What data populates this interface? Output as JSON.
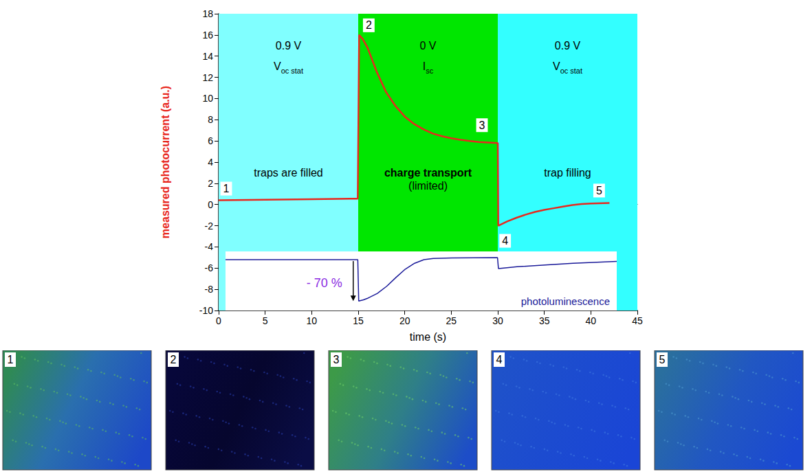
{
  "chart_data": [
    {
      "type": "line",
      "x_label": "time (s)",
      "y_label": "measured photocurrent (a.u.)",
      "xlim": [
        0,
        45
      ],
      "xticks": [
        0,
        5,
        10,
        15,
        20,
        25,
        30,
        35,
        40,
        45
      ],
      "ylim": [
        -10,
        18
      ],
      "yticks": [
        -10,
        -8,
        -6,
        -4,
        -2,
        0,
        2,
        4,
        6,
        8,
        10,
        12,
        14,
        16,
        18
      ],
      "grid": false,
      "color": "#e8281e",
      "x": [
        0,
        5,
        10,
        14.95,
        15.1,
        15.5,
        16,
        17,
        18,
        19,
        20,
        21,
        22,
        23,
        24,
        25,
        26,
        27,
        28,
        29,
        30,
        30.05,
        31,
        32,
        33,
        34,
        35,
        36,
        37,
        38,
        39,
        40,
        42
      ],
      "values": [
        0.4,
        0.45,
        0.5,
        0.55,
        16.0,
        15.6,
        14.8,
        12.5,
        10.6,
        9.3,
        8.3,
        7.6,
        7.1,
        6.7,
        6.45,
        6.25,
        6.1,
        6.0,
        5.9,
        5.85,
        5.8,
        -2.0,
        -1.6,
        -1.25,
        -0.95,
        -0.7,
        -0.5,
        -0.35,
        -0.2,
        -0.05,
        0.05,
        0.1,
        0.15
      ],
      "regions": [
        {
          "x": [
            0,
            15
          ],
          "color": "#80ffff",
          "voltage": "0.9 V",
          "quantity": "V",
          "subscript": "oc stat",
          "annotation": "traps are filled"
        },
        {
          "x": [
            15,
            30
          ],
          "color": "#00e600",
          "voltage": "0 V",
          "quantity": "I",
          "subscript": "sc",
          "annotation": "charge transport",
          "annotation_note": "(limited)"
        },
        {
          "x": [
            30,
            45
          ],
          "color": "#33ffff",
          "voltage": "0.9 V",
          "quantity": "V",
          "subscript": "oc stat",
          "annotation": "trap filling"
        }
      ],
      "point_labels": [
        {
          "text": "1",
          "x": 0,
          "y": 0.4
        },
        {
          "text": "2",
          "x": 15.1,
          "y": 16.0
        },
        {
          "text": "3",
          "x": 30,
          "y": 5.8
        },
        {
          "text": "4",
          "x": 30.05,
          "y": -2.0
        },
        {
          "text": "5",
          "x": 42,
          "y": 0.15
        }
      ]
    },
    {
      "type": "line",
      "tick_labels": false,
      "color": "#1a1a99",
      "xlim": [
        0.7,
        42.7
      ],
      "ylim": [
        0.14,
        1.14
      ],
      "x": [
        0.7,
        5,
        10,
        14.9,
        15,
        15.5,
        16,
        17,
        18,
        19,
        20,
        21,
        22,
        23,
        25,
        29.9,
        30,
        32,
        35,
        38,
        42.7
      ],
      "values": [
        1.0,
        1.0,
        1.0,
        1.0,
        0.3,
        0.32,
        0.35,
        0.43,
        0.55,
        0.7,
        0.84,
        0.94,
        1.0,
        1.02,
        1.03,
        1.035,
        0.85,
        0.88,
        0.91,
        0.94,
        0.97
      ],
      "drop_label": "- 70 %",
      "annotation": "photoluminescence"
    }
  ],
  "images": [
    {
      "label": "1"
    },
    {
      "label": "2"
    },
    {
      "label": "3"
    },
    {
      "label": "4"
    },
    {
      "label": "5"
    }
  ]
}
